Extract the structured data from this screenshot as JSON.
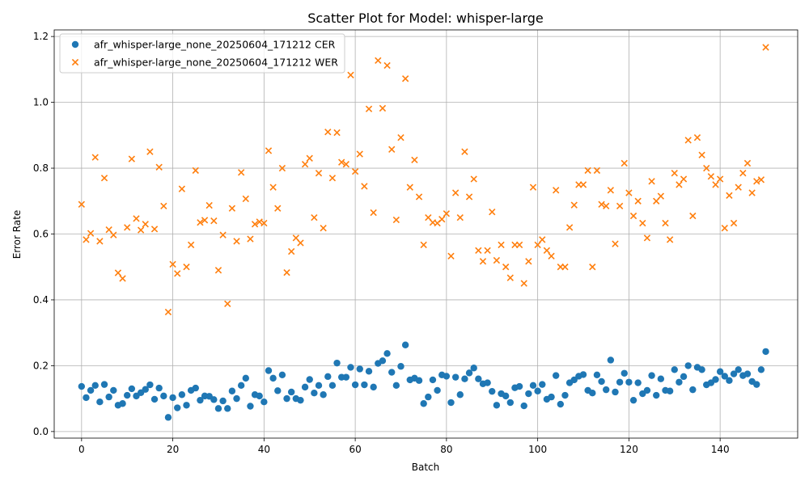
{
  "chart_data": {
    "type": "scatter",
    "title": "Scatter Plot for Model: whisper-large",
    "xlabel": "Batch",
    "ylabel": "Error Rate",
    "xlim": [
      -6,
      157
    ],
    "ylim": [
      -0.02,
      1.22
    ],
    "xticks": [
      0,
      20,
      40,
      60,
      80,
      100,
      120,
      140
    ],
    "yticks": [
      0.0,
      0.2,
      0.4,
      0.6,
      0.8,
      1.0,
      1.2
    ],
    "grid": true,
    "legend_position": "top-left",
    "series": [
      {
        "name": "afr_whisper-large_none_20250604_171212 CER",
        "marker": "circle",
        "color": "#1f77b4",
        "x": [
          0,
          1,
          2,
          3,
          4,
          5,
          6,
          7,
          8,
          9,
          10,
          11,
          12,
          13,
          14,
          15,
          16,
          17,
          18,
          19,
          20,
          21,
          22,
          23,
          24,
          25,
          26,
          27,
          28,
          29,
          30,
          31,
          32,
          33,
          34,
          35,
          36,
          37,
          38,
          39,
          40,
          41,
          42,
          43,
          44,
          45,
          46,
          47,
          48,
          49,
          50,
          51,
          52,
          53,
          54,
          55,
          56,
          57,
          58,
          59,
          60,
          61,
          62,
          63,
          64,
          65,
          66,
          67,
          68,
          69,
          70,
          71,
          72,
          73,
          74,
          75,
          76,
          77,
          78,
          79,
          80,
          81,
          82,
          83,
          84,
          85,
          86,
          87,
          88,
          89,
          90,
          91,
          92,
          93,
          94,
          95,
          96,
          97,
          98,
          99,
          100,
          101,
          102,
          103,
          104,
          105,
          106,
          107,
          108,
          109,
          110,
          111,
          112,
          113,
          114,
          115,
          116,
          117,
          118,
          119,
          120,
          121,
          122,
          123,
          124,
          125,
          126,
          127,
          128,
          129,
          130,
          131,
          132,
          133,
          134,
          135,
          136,
          137,
          138,
          139,
          140,
          141,
          142,
          143,
          144,
          145,
          146,
          147,
          148,
          149,
          150
        ],
        "y": [
          0.137,
          0.103,
          0.125,
          0.14,
          0.09,
          0.143,
          0.105,
          0.125,
          0.08,
          0.085,
          0.11,
          0.13,
          0.108,
          0.118,
          0.128,
          0.142,
          0.098,
          0.132,
          0.108,
          0.043,
          0.103,
          0.072,
          0.112,
          0.08,
          0.125,
          0.132,
          0.095,
          0.108,
          0.107,
          0.097,
          0.07,
          0.093,
          0.07,
          0.123,
          0.1,
          0.14,
          0.162,
          0.077,
          0.112,
          0.108,
          0.09,
          0.185,
          0.162,
          0.124,
          0.172,
          0.1,
          0.12,
          0.1,
          0.095,
          0.135,
          0.158,
          0.117,
          0.14,
          0.112,
          0.167,
          0.14,
          0.208,
          0.165,
          0.165,
          0.195,
          0.142,
          0.19,
          0.142,
          0.183,
          0.135,
          0.207,
          0.215,
          0.237,
          0.18,
          0.14,
          0.198,
          0.263,
          0.157,
          0.162,
          0.155,
          0.085,
          0.105,
          0.157,
          0.125,
          0.172,
          0.168,
          0.088,
          0.165,
          0.112,
          0.16,
          0.178,
          0.193,
          0.16,
          0.145,
          0.148,
          0.122,
          0.08,
          0.115,
          0.108,
          0.088,
          0.133,
          0.137,
          0.078,
          0.115,
          0.14,
          0.123,
          0.143,
          0.098,
          0.105,
          0.17,
          0.083,
          0.11,
          0.148,
          0.157,
          0.168,
          0.173,
          0.125,
          0.117,
          0.172,
          0.152,
          0.127,
          0.217,
          0.12,
          0.15,
          0.177,
          0.15,
          0.095,
          0.148,
          0.115,
          0.125,
          0.17,
          0.11,
          0.16,
          0.125,
          0.123,
          0.188,
          0.15,
          0.167,
          0.2,
          0.127,
          0.195,
          0.188,
          0.142,
          0.148,
          0.158,
          0.182,
          0.168,
          0.155,
          0.175,
          0.188,
          0.17,
          0.175,
          0.152,
          0.143,
          0.188,
          0.243
        ]
      },
      {
        "name": "afr_whisper-large_none_20250604_171212 WER",
        "marker": "x",
        "color": "#ff7f0e",
        "x": [
          0,
          1,
          2,
          3,
          4,
          5,
          6,
          7,
          8,
          9,
          10,
          11,
          12,
          13,
          14,
          15,
          16,
          17,
          18,
          19,
          20,
          21,
          22,
          23,
          24,
          25,
          26,
          27,
          28,
          29,
          30,
          31,
          32,
          33,
          34,
          35,
          36,
          37,
          38,
          39,
          40,
          41,
          42,
          43,
          44,
          45,
          46,
          47,
          48,
          49,
          50,
          51,
          52,
          53,
          54,
          55,
          56,
          57,
          58,
          59,
          60,
          61,
          62,
          63,
          64,
          65,
          66,
          67,
          68,
          69,
          70,
          71,
          72,
          73,
          74,
          75,
          76,
          77,
          78,
          79,
          80,
          81,
          82,
          83,
          84,
          85,
          86,
          87,
          88,
          89,
          90,
          91,
          92,
          93,
          94,
          95,
          96,
          97,
          98,
          99,
          100,
          101,
          102,
          103,
          104,
          105,
          106,
          107,
          108,
          109,
          110,
          111,
          112,
          113,
          114,
          115,
          116,
          117,
          118,
          119,
          120,
          121,
          122,
          123,
          124,
          125,
          126,
          127,
          128,
          129,
          130,
          131,
          132,
          133,
          134,
          135,
          136,
          137,
          138,
          139,
          140,
          141,
          142,
          143,
          144,
          145,
          146,
          147,
          148,
          149,
          150
        ],
        "y": [
          0.69,
          0.583,
          0.602,
          0.833,
          0.578,
          0.77,
          0.613,
          0.597,
          0.482,
          0.465,
          0.62,
          0.828,
          0.647,
          0.612,
          0.63,
          0.85,
          0.615,
          0.803,
          0.685,
          0.363,
          0.508,
          0.48,
          0.737,
          0.5,
          0.567,
          0.793,
          0.635,
          0.642,
          0.687,
          0.64,
          0.49,
          0.597,
          0.388,
          0.678,
          0.578,
          0.787,
          0.707,
          0.585,
          0.63,
          0.637,
          0.633,
          0.853,
          0.742,
          0.678,
          0.8,
          0.483,
          0.547,
          0.588,
          0.573,
          0.812,
          0.83,
          0.65,
          0.785,
          0.618,
          0.91,
          0.77,
          0.908,
          0.818,
          0.812,
          1.083,
          0.79,
          0.843,
          0.745,
          0.98,
          0.665,
          1.127,
          0.982,
          1.112,
          0.857,
          0.643,
          0.893,
          1.072,
          0.742,
          0.825,
          0.713,
          0.567,
          0.65,
          0.635,
          0.633,
          0.645,
          0.662,
          0.533,
          0.725,
          0.65,
          0.85,
          0.713,
          0.767,
          0.55,
          0.517,
          0.55,
          0.667,
          0.52,
          0.567,
          0.5,
          0.467,
          0.567,
          0.567,
          0.45,
          0.517,
          0.742,
          0.567,
          0.583,
          0.55,
          0.533,
          0.733,
          0.5,
          0.5,
          0.62,
          0.688,
          0.75,
          0.75,
          0.793,
          0.5,
          0.793,
          0.69,
          0.685,
          0.733,
          0.57,
          0.685,
          0.815,
          0.725,
          0.655,
          0.7,
          0.633,
          0.588,
          0.76,
          0.7,
          0.715,
          0.633,
          0.583,
          0.785,
          0.75,
          0.767,
          0.885,
          0.655,
          0.893,
          0.84,
          0.8,
          0.775,
          0.75,
          0.767,
          0.618,
          0.717,
          0.633,
          0.742,
          0.785,
          0.815,
          0.725,
          0.76,
          0.765,
          1.167
        ]
      }
    ]
  }
}
